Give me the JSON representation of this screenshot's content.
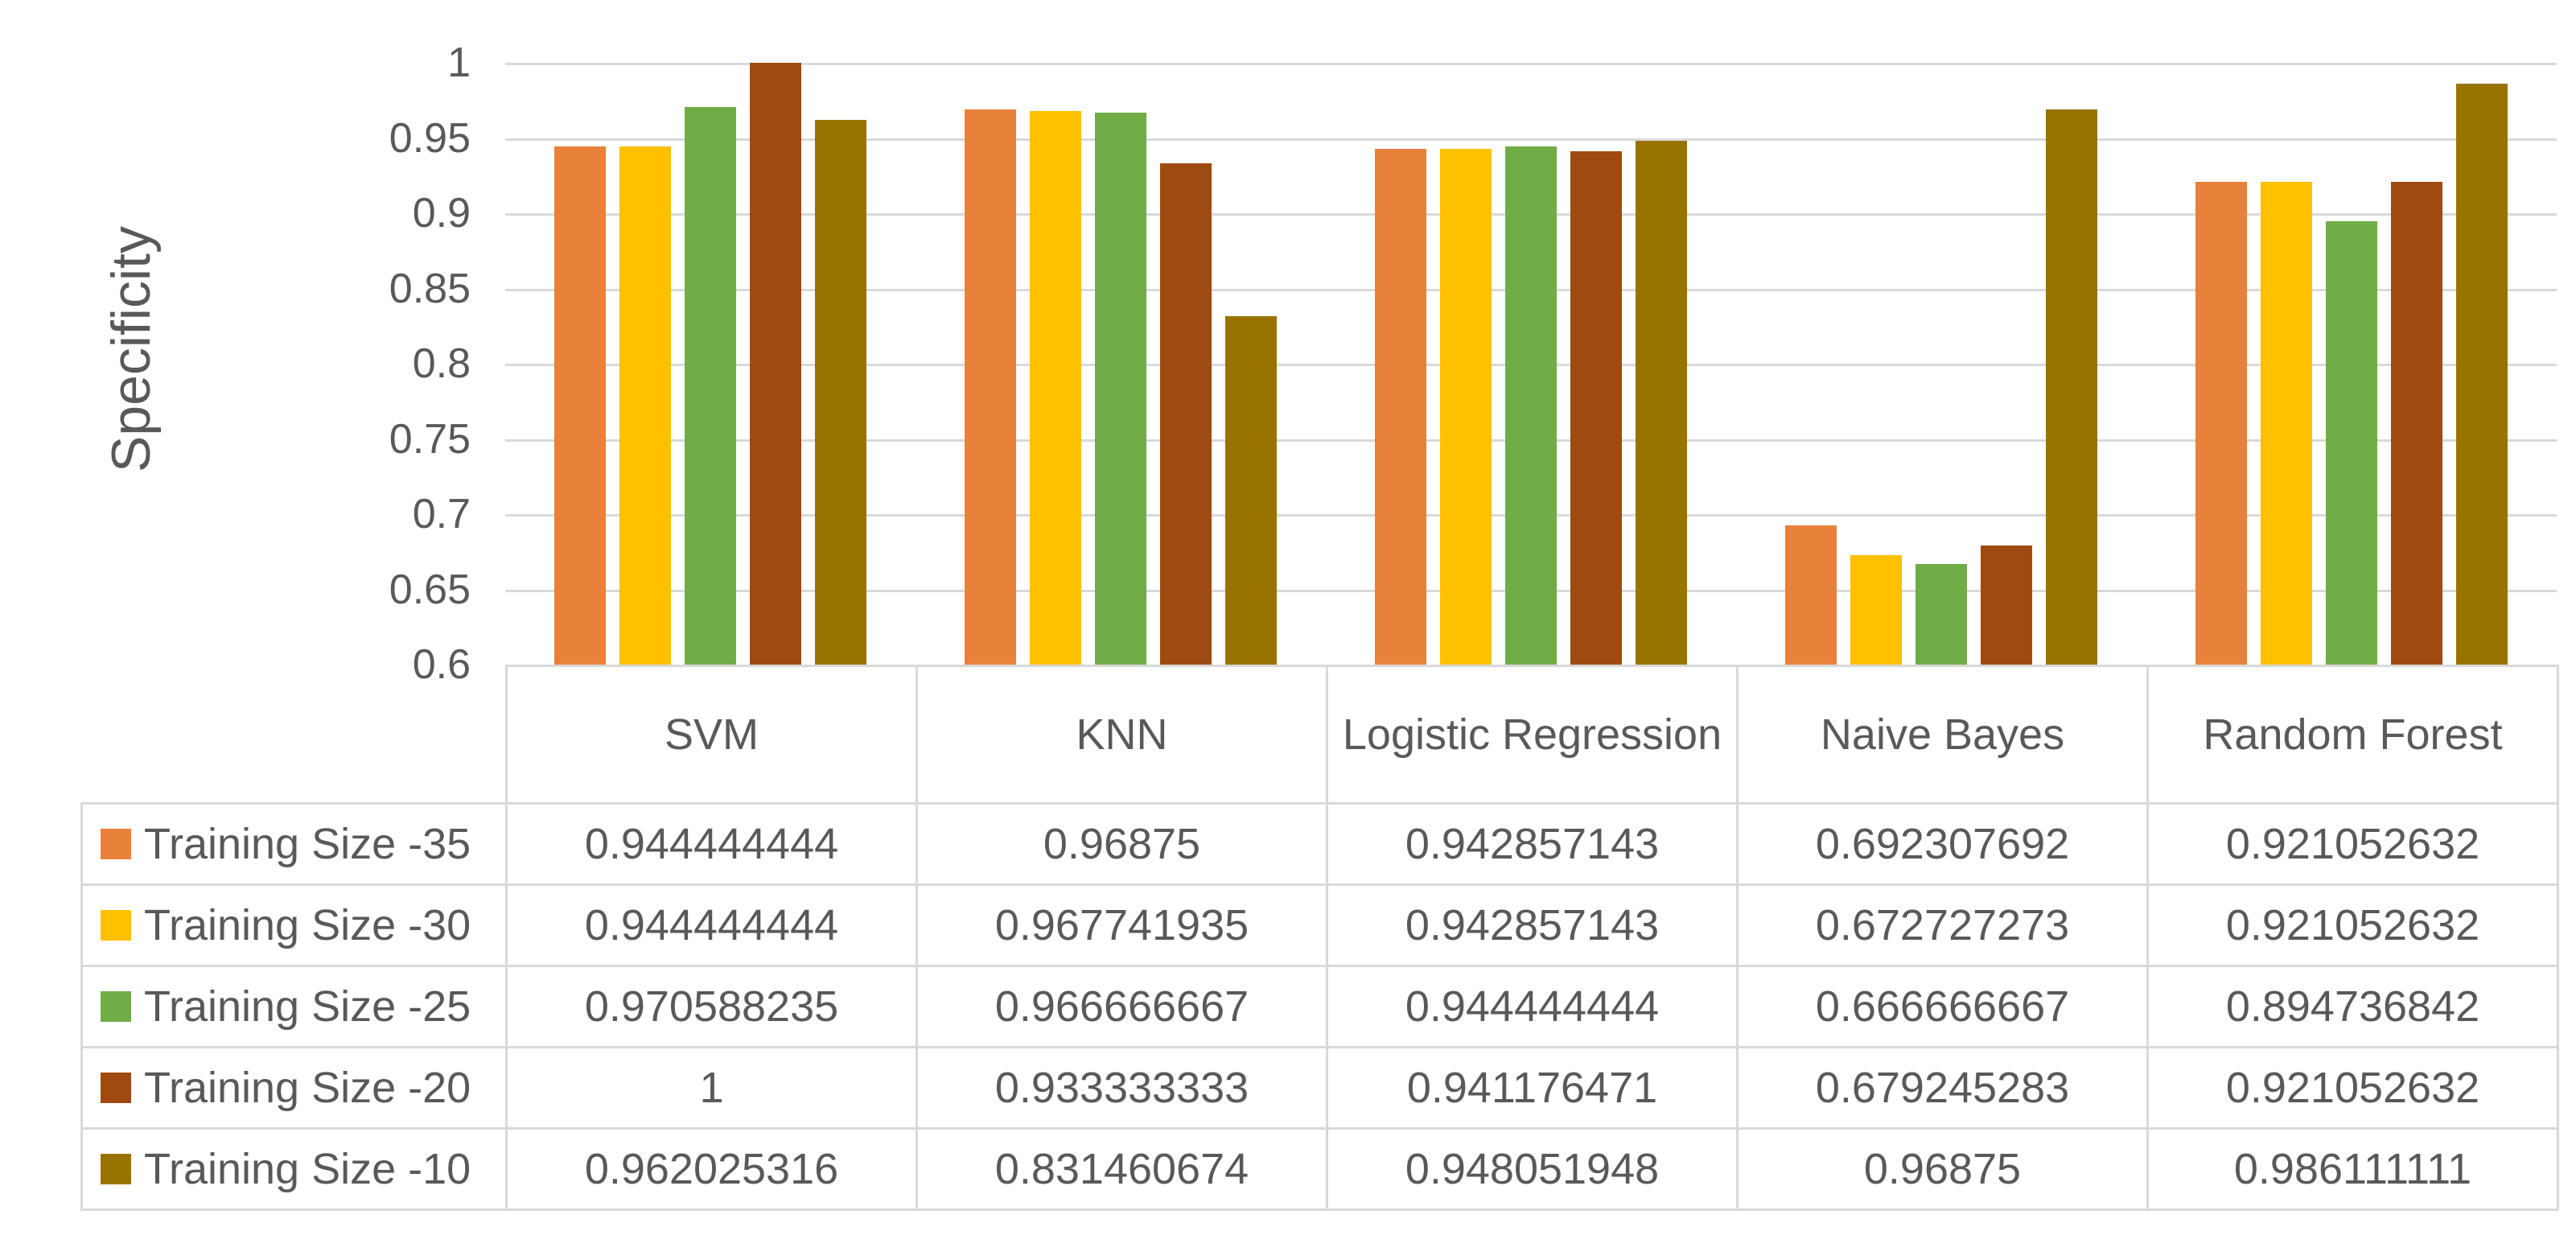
{
  "chart_data": {
    "type": "bar",
    "title": "",
    "ylabel": "Specificity",
    "xlabel": "",
    "ylim": [
      0.6,
      1.0
    ],
    "ytick_interval": 0.05,
    "yticks": [
      "1",
      "0.95",
      "0.9",
      "0.85",
      "0.8",
      "0.75",
      "0.7",
      "0.65",
      "0.6"
    ],
    "grid": true,
    "legend_position": "left-of-data-table",
    "categories": [
      "SVM",
      "KNN",
      "Logistic Regression",
      "Naive Bayes",
      "Random Forest"
    ],
    "series": [
      {
        "name": "Training Size -35",
        "color": "#e8813a",
        "values": [
          0.944444444,
          0.96875,
          0.942857143,
          0.692307692,
          0.921052632
        ],
        "display": [
          "0.944444444",
          "0.96875",
          "0.942857143",
          "0.692307692",
          "0.921052632"
        ]
      },
      {
        "name": "Training Size -30",
        "color": "#ffc000",
        "values": [
          0.944444444,
          0.967741935,
          0.942857143,
          0.672727273,
          0.921052632
        ],
        "display": [
          "0.944444444",
          "0.967741935",
          "0.942857143",
          "0.672727273",
          "0.921052632"
        ]
      },
      {
        "name": "Training Size -25",
        "color": "#70ad47",
        "values": [
          0.970588235,
          0.966666667,
          0.944444444,
          0.666666667,
          0.894736842
        ],
        "display": [
          "0.970588235",
          "0.966666667",
          "0.944444444",
          "0.666666667",
          "0.894736842"
        ]
      },
      {
        "name": "Training Size -20",
        "color": "#9e4a10",
        "values": [
          1,
          0.933333333,
          0.941176471,
          0.679245283,
          0.921052632
        ],
        "display": [
          "1",
          "0.933333333",
          "0.941176471",
          "0.679245283",
          "0.921052632"
        ]
      },
      {
        "name": "Training Size -10",
        "color": "#997300",
        "values": [
          0.962025316,
          0.831460674,
          0.948051948,
          0.96875,
          0.986111111
        ],
        "display": [
          "0.962025316",
          "0.831460674",
          "0.948051948",
          "0.96875",
          "0.986111111"
        ]
      }
    ]
  },
  "colors": {
    "text": "#595959",
    "gridline": "#d9d9d9",
    "table_border": "#d9d9d9",
    "background": "#ffffff"
  }
}
